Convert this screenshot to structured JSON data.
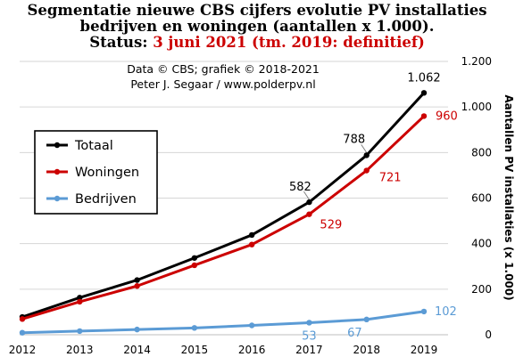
{
  "title": {
    "line1": "Segmentatie nieuwe CBS cijfers evolutie PV installaties",
    "line2": "bedrijven en woningen (aantallen x 1.000).",
    "status_label": "Status:",
    "status_value": "3 juni 2021 (tm. 2019: definitief)"
  },
  "credits": {
    "line1": "Data © CBS; grafiek © 2018-2021",
    "line2": "Peter J. Segaar / www.polderpv.nl"
  },
  "chart_data": {
    "type": "line",
    "x": [
      2012,
      2013,
      2014,
      2015,
      2016,
      2017,
      2018,
      2019
    ],
    "ylabel": "Aantallen PV installaties (x 1.000)",
    "ylim": [
      0,
      1200
    ],
    "y_ticks": [
      0,
      200,
      400,
      600,
      800,
      1000,
      1200
    ],
    "y_tick_labels": [
      "0",
      "200",
      "400",
      "600",
      "800",
      "1.000",
      "1.200"
    ],
    "grid": true,
    "y_axis_side": "right",
    "legend_placement": "left",
    "series": [
      {
        "name": "Totaal",
        "color": "#000000",
        "values": [
          78,
          163,
          240,
          337,
          438,
          582,
          788,
          1062
        ],
        "labels": [
          null,
          null,
          null,
          null,
          null,
          "582",
          "788",
          "1.062"
        ]
      },
      {
        "name": "Woningen",
        "color": "#cc0000",
        "values": [
          69,
          145,
          214,
          305,
          396,
          529,
          721,
          960
        ],
        "labels": [
          null,
          null,
          null,
          null,
          null,
          "529",
          "721",
          "960"
        ]
      },
      {
        "name": "Bedrijven",
        "color": "#5b9bd5",
        "values": [
          9,
          16,
          23,
          30,
          41,
          53,
          67,
          102
        ],
        "labels": [
          null,
          null,
          null,
          null,
          null,
          "53",
          "67",
          "102"
        ]
      }
    ]
  }
}
